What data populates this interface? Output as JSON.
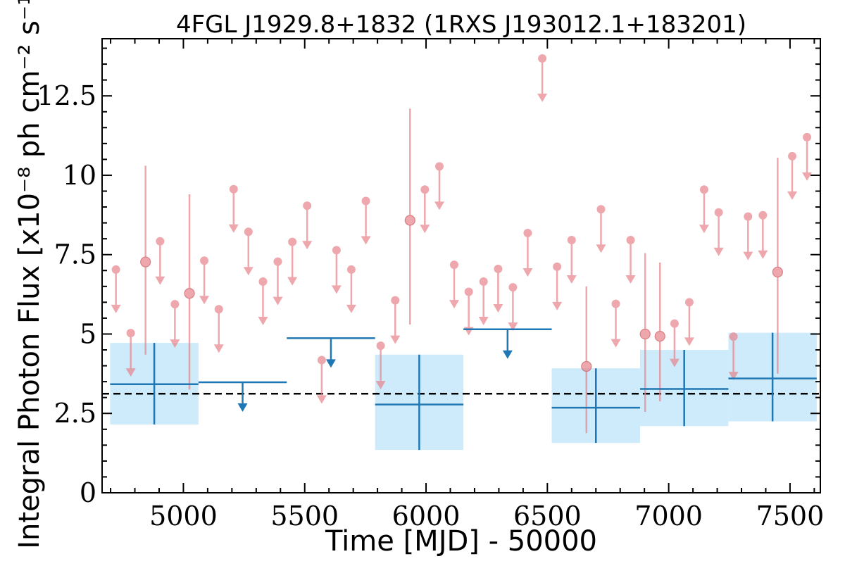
{
  "chart_data": {
    "type": "scatter",
    "title": "4FGL J1929.8+1832 (1RXS J193012.1+183201)",
    "xlabel": "Time [MJD] - 50000",
    "ylabel": "Integral Photon Flux [x10⁻⁸ ph cm⁻² s⁻¹]",
    "xlim": [
      4665,
      7625
    ],
    "ylim": [
      0,
      14.3
    ],
    "xticks": [
      5000,
      5500,
      6000,
      6500,
      7000,
      7500
    ],
    "xtick_labels": [
      "5000",
      "5500",
      "6000",
      "6500",
      "7000",
      "7500"
    ],
    "yticks": [
      0,
      2.5,
      5,
      7.5,
      10,
      12.5
    ],
    "ytick_labels": [
      "0",
      "2.5",
      "5",
      "7.5",
      "10",
      "12.5"
    ],
    "grid": false,
    "mean_flux": 3.12,
    "colors": {
      "short_bins": "#e8838a",
      "long_bins": "#1f77b4",
      "long_bin_band": "#cdebfa",
      "mean_line": "#000000"
    },
    "long_bins": [
      {
        "x_start": 4698,
        "x_end": 5062,
        "y": 3.42,
        "y_low": 2.15,
        "y_high": 4.72,
        "upper_limit": false
      },
      {
        "x_start": 5062,
        "x_end": 5426,
        "y": 3.48,
        "upper_limit": true
      },
      {
        "x_start": 5426,
        "x_end": 5790,
        "y": 4.87,
        "upper_limit": true
      },
      {
        "x_start": 5790,
        "x_end": 6154,
        "y": 2.78,
        "y_low": 1.35,
        "y_high": 4.35,
        "upper_limit": false
      },
      {
        "x_start": 6154,
        "x_end": 6518,
        "y": 5.15,
        "upper_limit": true
      },
      {
        "x_start": 6518,
        "x_end": 6882,
        "y": 2.68,
        "y_low": 1.57,
        "y_high": 3.92,
        "upper_limit": false
      },
      {
        "x_start": 6882,
        "x_end": 7246,
        "y": 3.27,
        "y_low": 2.1,
        "y_high": 4.5,
        "upper_limit": false
      },
      {
        "x_start": 7246,
        "x_end": 7610,
        "y": 3.6,
        "y_low": 2.25,
        "y_high": 5.04,
        "upper_limit": false
      }
    ],
    "short_bins": [
      {
        "x": 4722,
        "y": 7.03,
        "upper_limit": true
      },
      {
        "x": 4783,
        "y": 5.03,
        "upper_limit": true
      },
      {
        "x": 4844,
        "y": 7.27,
        "y_low": 4.35,
        "y_high": 10.3,
        "upper_limit": false
      },
      {
        "x": 4904,
        "y": 7.92,
        "upper_limit": true
      },
      {
        "x": 4965,
        "y": 5.94,
        "upper_limit": true
      },
      {
        "x": 5025,
        "y": 6.28,
        "y_low": 3.25,
        "y_high": 9.4,
        "upper_limit": false
      },
      {
        "x": 5086,
        "y": 7.31,
        "upper_limit": true
      },
      {
        "x": 5146,
        "y": 5.78,
        "upper_limit": true
      },
      {
        "x": 5207,
        "y": 9.56,
        "upper_limit": true
      },
      {
        "x": 5268,
        "y": 8.22,
        "upper_limit": true
      },
      {
        "x": 5328,
        "y": 6.65,
        "upper_limit": true
      },
      {
        "x": 5389,
        "y": 7.28,
        "upper_limit": true
      },
      {
        "x": 5449,
        "y": 7.9,
        "upper_limit": true
      },
      {
        "x": 5510,
        "y": 9.04,
        "upper_limit": true
      },
      {
        "x": 5570,
        "y": 4.18,
        "upper_limit": true
      },
      {
        "x": 5631,
        "y": 7.64,
        "upper_limit": true
      },
      {
        "x": 5692,
        "y": 7.03,
        "upper_limit": true
      },
      {
        "x": 5752,
        "y": 9.19,
        "upper_limit": true
      },
      {
        "x": 5813,
        "y": 4.63,
        "upper_limit": true
      },
      {
        "x": 5873,
        "y": 6.06,
        "upper_limit": true
      },
      {
        "x": 5934,
        "y": 8.58,
        "y_low": 5.3,
        "y_high": 12.1,
        "upper_limit": false
      },
      {
        "x": 5995,
        "y": 9.55,
        "upper_limit": true
      },
      {
        "x": 6055,
        "y": 10.28,
        "upper_limit": true
      },
      {
        "x": 6116,
        "y": 7.18,
        "upper_limit": true
      },
      {
        "x": 6176,
        "y": 6.33,
        "upper_limit": true
      },
      {
        "x": 6237,
        "y": 6.65,
        "upper_limit": true
      },
      {
        "x": 6297,
        "y": 7.05,
        "upper_limit": true
      },
      {
        "x": 6358,
        "y": 6.47,
        "upper_limit": true
      },
      {
        "x": 6419,
        "y": 8.18,
        "upper_limit": true
      },
      {
        "x": 6479,
        "y": 13.68,
        "upper_limit": true
      },
      {
        "x": 6540,
        "y": 7.12,
        "upper_limit": true
      },
      {
        "x": 6600,
        "y": 7.96,
        "upper_limit": true
      },
      {
        "x": 6661,
        "y": 3.98,
        "y_low": 1.88,
        "y_high": 6.5,
        "upper_limit": false
      },
      {
        "x": 6721,
        "y": 8.93,
        "upper_limit": true
      },
      {
        "x": 6782,
        "y": 5.95,
        "upper_limit": true
      },
      {
        "x": 6843,
        "y": 7.96,
        "upper_limit": true
      },
      {
        "x": 6903,
        "y": 5.0,
        "y_low": 2.55,
        "y_high": 7.55,
        "upper_limit": false
      },
      {
        "x": 6964,
        "y": 4.93,
        "y_low": 2.88,
        "y_high": 7.25,
        "upper_limit": false
      },
      {
        "x": 7024,
        "y": 5.33,
        "upper_limit": true
      },
      {
        "x": 7085,
        "y": 6.0,
        "upper_limit": true
      },
      {
        "x": 7146,
        "y": 9.55,
        "upper_limit": true
      },
      {
        "x": 7206,
        "y": 8.83,
        "upper_limit": true
      },
      {
        "x": 7267,
        "y": 4.92,
        "upper_limit": true
      },
      {
        "x": 7327,
        "y": 8.7,
        "upper_limit": true
      },
      {
        "x": 7388,
        "y": 8.74,
        "upper_limit": true
      },
      {
        "x": 7449,
        "y": 6.95,
        "y_low": 3.75,
        "y_high": 10.55,
        "upper_limit": false
      },
      {
        "x": 7509,
        "y": 10.6,
        "upper_limit": true
      },
      {
        "x": 7570,
        "y": 11.2,
        "upper_limit": true
      }
    ]
  }
}
